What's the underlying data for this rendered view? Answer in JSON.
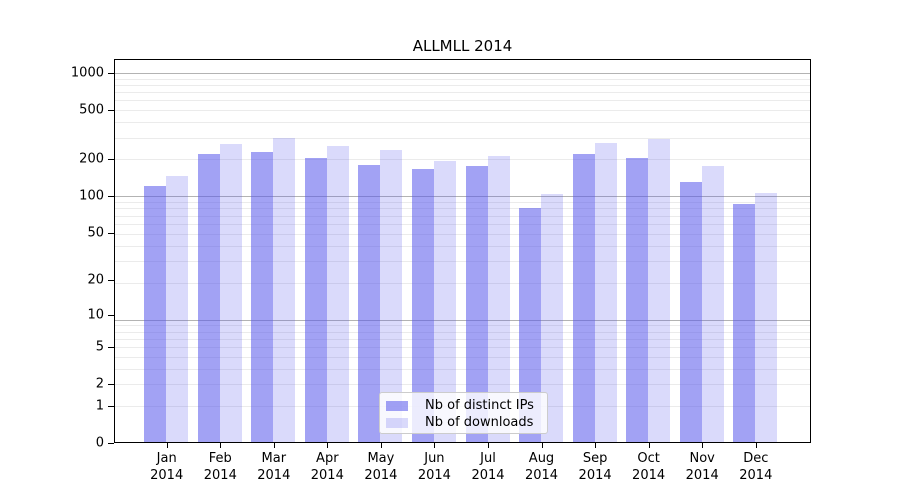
{
  "chart_data": {
    "type": "bar",
    "title": "ALLMLL 2014",
    "categories": [
      "Jan",
      "Feb",
      "Mar",
      "Apr",
      "May",
      "Jun",
      "Jul",
      "Aug",
      "Sep",
      "Oct",
      "Nov",
      "Dec"
    ],
    "category_year": "2014",
    "series": [
      {
        "name": "Nb of distinct IPs",
        "color": "rgba(85,85,235,0.55)",
        "values": [
          120,
          218,
          230,
          204,
          180,
          167,
          175,
          80,
          218,
          204,
          130,
          86
        ]
      },
      {
        "name": "Nb of downloads",
        "color": "rgba(85,85,235,0.22)",
        "values": [
          146,
          265,
          298,
          254,
          236,
          194,
          212,
          103,
          271,
          291,
          176,
          106
        ]
      }
    ],
    "yticks": [
      0,
      1,
      2,
      5,
      10,
      20,
      50,
      100,
      200,
      500,
      1000
    ],
    "scale": "log1p",
    "ylim": [
      0,
      1300
    ],
    "grid": true,
    "legend_position": "lower center"
  },
  "colors": {
    "major_grid": "#b3b3b3",
    "minor_grid": "#ebebeb",
    "axis": "#000000",
    "legend_border": "#cccccc",
    "background": "#ffffff"
  }
}
